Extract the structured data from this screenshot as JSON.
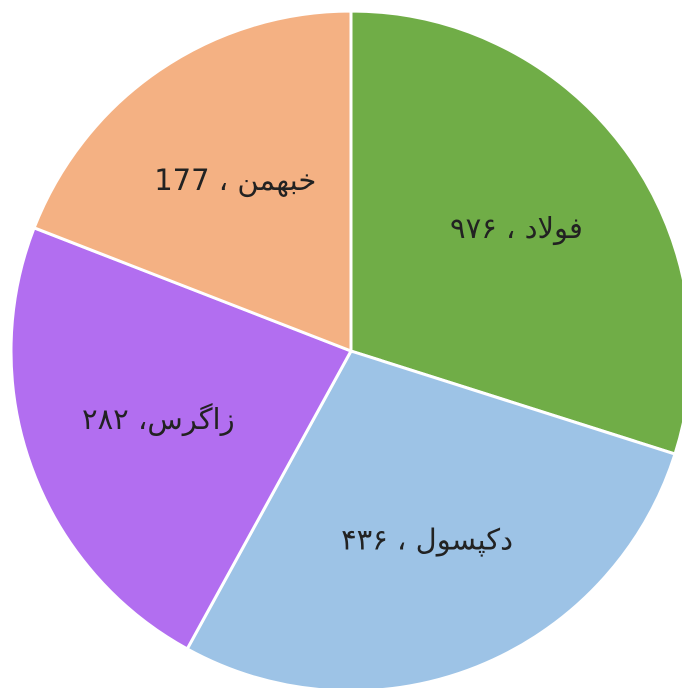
{
  "chart_data": {
    "type": "pie",
    "categories": [
      "فولاد ، ۹۷۶",
      "دکپسول ، ۴۳۶",
      "زاگرس، ۲۸۲",
      "خبهمن ، 177"
    ],
    "values": [
      29.9,
      28.1,
      22.9,
      19.1
    ],
    "colors": [
      "#70ad47",
      "#9dc3e6",
      "#b26ef0",
      "#f4b183"
    ]
  }
}
